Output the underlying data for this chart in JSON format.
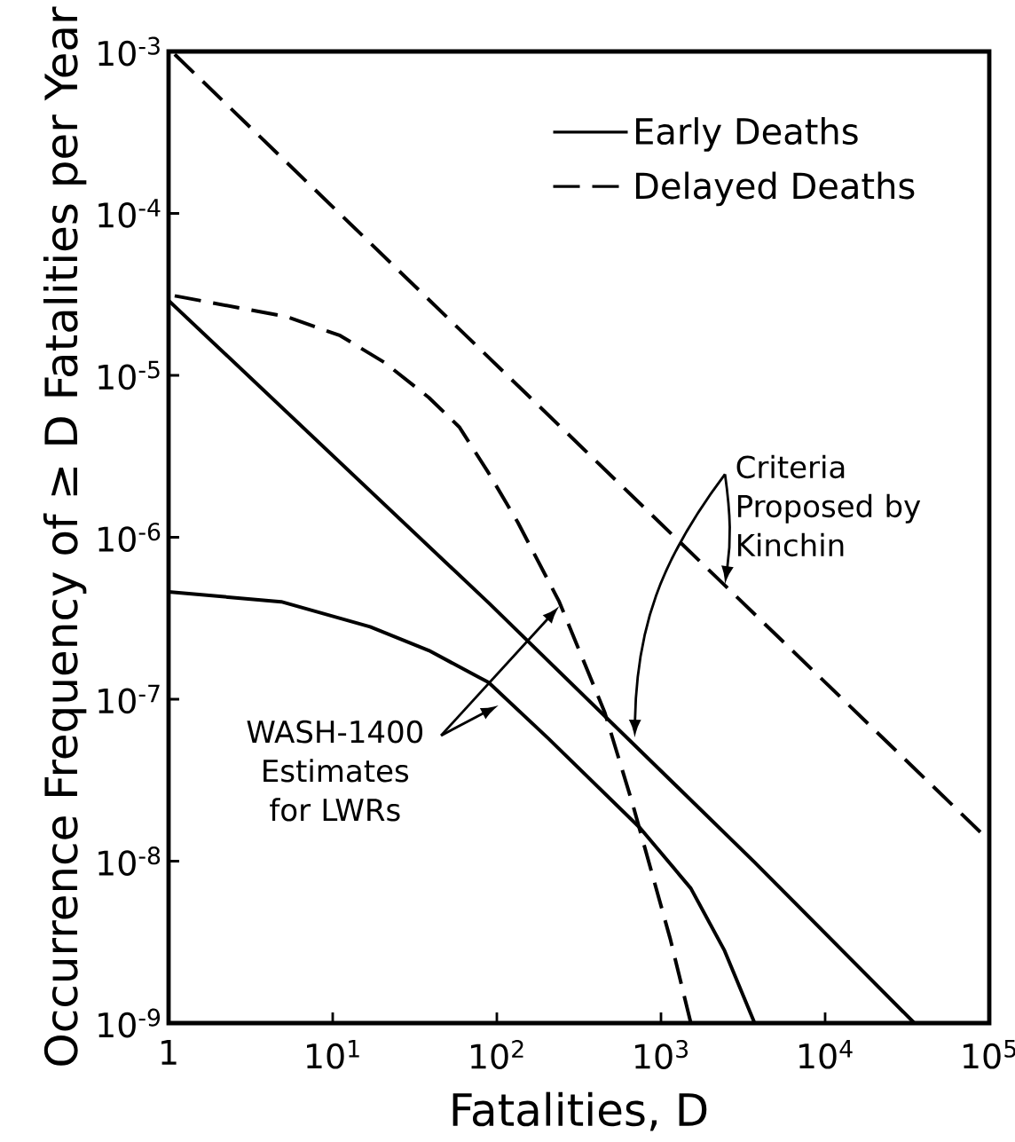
{
  "chart_data": {
    "type": "line",
    "xlabel": "Fatalities, D",
    "ylabel": "Occurrence Frequency of ≥ D Fatalities per Year",
    "log": "xy",
    "xlim": [
      1,
      100000
    ],
    "ylim": [
      1e-09,
      0.001
    ],
    "xticks": [
      1,
      {
        "value": 10,
        "label": "10$^{1}$"
      },
      {
        "value": 100,
        "label": "10$^{2}$"
      },
      {
        "value": 1000,
        "label": "10$^{3}$"
      },
      {
        "value": 10000,
        "label": "10$^{4}$"
      },
      {
        "value": 100000,
        "label": "10$^{5}$"
      }
    ],
    "yticks": [
      {
        "value": 1e-09,
        "label": "10$^{-9}$"
      },
      {
        "value": 1e-08,
        "label": "10$^{-8}$"
      },
      {
        "value": 1e-07,
        "label": "10$^{-7}$"
      },
      {
        "value": 1e-06,
        "label": "10$^{-6}$"
      },
      {
        "value": 1e-05,
        "label": "10$^{-5}$"
      },
      {
        "value": 0.0001,
        "label": "10$^{-4}$"
      },
      {
        "value": 0.001,
        "label": "10$^{-3}$"
      }
    ],
    "legend": "top right",
    "series": [
      {
        "name": "Early Deaths",
        "color": "#000000",
        "line_style": "solid",
        "x": [
          1,
          90,
          3700,
          35000
        ],
        "values": [
          2.9e-05,
          3.9e-07,
          9.9e-09,
          1e-09
        ]
      },
      {
        "name": "Delayed Deaths",
        "color": "#000000",
        "line_style": "dashed",
        "x": [
          1.09,
          89000
        ],
        "values": [
          0.00096,
          1.5e-08
        ]
      },
      {
        "color": "#000000",
        "line_style": "solid",
        "x": [
          1,
          4.86,
          16.9,
          38.5,
          89,
          205,
          747,
          1520,
          2440,
          3720
        ],
        "values": [
          4.6e-07,
          4e-07,
          2.8e-07,
          2e-07,
          1.27e-07,
          5.75e-08,
          1.6e-08,
          6.8e-09,
          2.8e-09,
          1e-09
        ]
      },
      {
        "color": "#000000",
        "line_style": "dashed",
        "x": [
          1.09,
          5.25,
          11.1,
          20.7,
          38.5,
          59,
          89,
          134,
          240,
          454,
          668,
          1140,
          1520
        ],
        "values": [
          3.1e-05,
          2.3e-05,
          1.76e-05,
          1.2e-05,
          7.3e-06,
          4.8e-06,
          2.5e-06,
          1.24e-06,
          4e-07,
          8.3e-08,
          2.3e-08,
          3.3e-09,
          1e-09
        ]
      }
    ],
    "annotations": [
      "WASH-1400 Estimates for LWRs",
      "Criteria Proposed by Kinchin"
    ]
  }
}
